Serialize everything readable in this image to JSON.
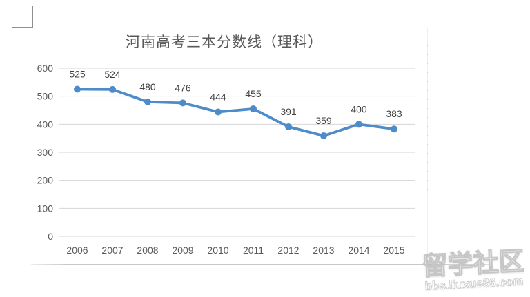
{
  "chart_data": {
    "type": "line",
    "title": "河南高考三本分数线（理科）",
    "categories": [
      "2006",
      "2007",
      "2008",
      "2009",
      "2010",
      "2011",
      "2012",
      "2013",
      "2014",
      "2015"
    ],
    "values": [
      525,
      524,
      480,
      476,
      444,
      455,
      391,
      359,
      400,
      383
    ],
    "xlabel": "",
    "ylabel": "",
    "ylim": [
      0,
      600
    ],
    "yticks": [
      0,
      100,
      200,
      300,
      400,
      500,
      600
    ],
    "grid": true,
    "legend": "none",
    "show_data_labels": true,
    "colors": {
      "series": "#4E8CC9",
      "marker": "#4E8CC9",
      "gridline": "#D6D6D6",
      "axis_text": "#595959",
      "data_label_text": "#404040",
      "title_text": "#595959"
    }
  },
  "watermark": {
    "title": "留学社区",
    "url": "bbs.liuxue86.com"
  }
}
